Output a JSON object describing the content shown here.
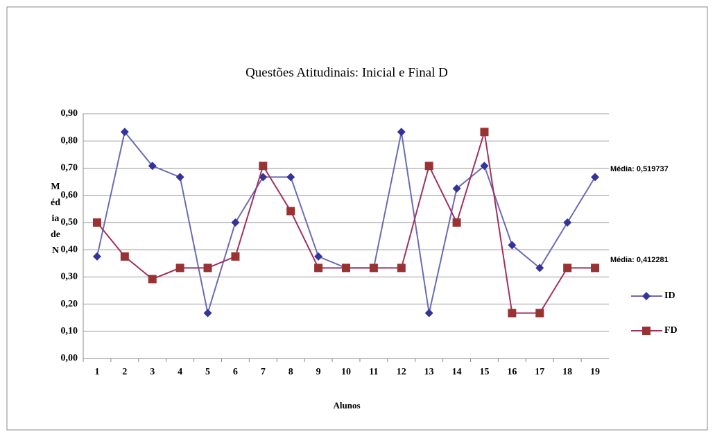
{
  "chart_data": {
    "type": "line",
    "title": "Questões Atitudinais: Inicial e Final D",
    "x_label": "Alunos",
    "y_label": [
      "M",
      "éd",
      "ia",
      "de",
      "N"
    ],
    "categories": [
      "1",
      "2",
      "3",
      "4",
      "5",
      "6",
      "7",
      "8",
      "9",
      "10",
      "11",
      "12",
      "13",
      "14",
      "15",
      "16",
      "17",
      "18",
      "19"
    ],
    "series": [
      {
        "name": "ID",
        "color": "#333399",
        "line_color": "#6b6bb5",
        "marker": "diamond",
        "values": [
          0.375,
          0.833,
          0.708,
          0.667,
          0.167,
          0.5,
          0.667,
          0.667,
          0.375,
          0.333,
          0.333,
          0.833,
          0.167,
          0.625,
          0.708,
          0.417,
          0.333,
          0.5,
          0.667
        ]
      },
      {
        "name": "FD",
        "color": "#993333",
        "line_color": "#a0305f",
        "marker": "square",
        "values": [
          0.5,
          0.375,
          0.292,
          0.333,
          0.333,
          0.375,
          0.708,
          0.542,
          0.333,
          0.333,
          0.333,
          0.333,
          0.708,
          0.5,
          0.833,
          0.167,
          0.167,
          0.333,
          0.333
        ]
      }
    ],
    "annotations": [
      "Média: 0,519737",
      "Média: 0,412281"
    ],
    "ylim": [
      0,
      0.9
    ],
    "yticks": [
      {
        "value": 0,
        "label": "0,00"
      },
      {
        "value": 0.1,
        "label": "0,10"
      },
      {
        "value": 0.2,
        "label": "0,20"
      },
      {
        "value": 0.3,
        "label": "0,30"
      },
      {
        "value": 0.4,
        "label": "0,40"
      },
      {
        "value": 0.5,
        "label": "0,50"
      },
      {
        "value": 0.6,
        "label": "0,60"
      },
      {
        "value": 0.7,
        "label": "0,70"
      },
      {
        "value": 0.8,
        "label": "0,80"
      },
      {
        "value": 0.9,
        "label": "0,90"
      }
    ],
    "grid": true
  }
}
